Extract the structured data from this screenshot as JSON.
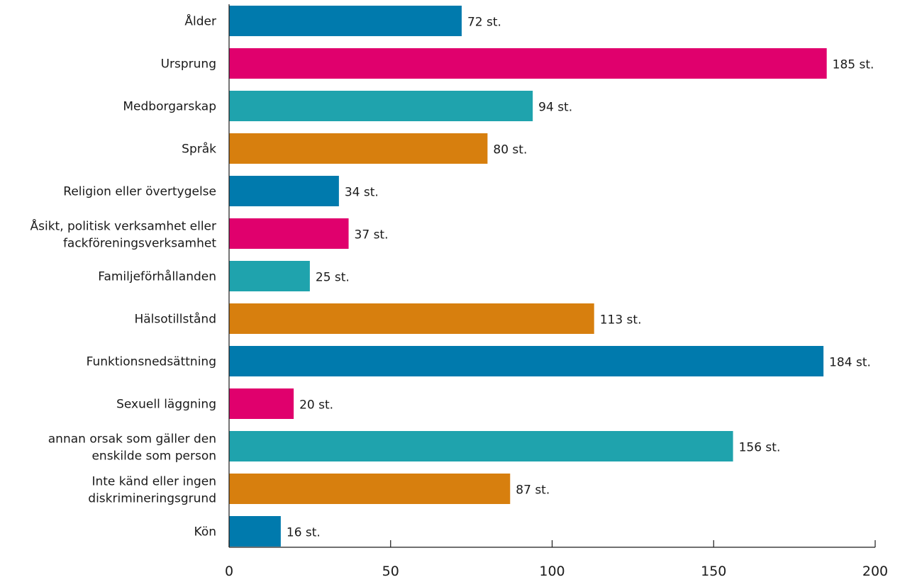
{
  "chart_data": {
    "type": "bar",
    "orientation": "horizontal",
    "title": "",
    "xlabel": "",
    "ylabel": "",
    "xlim": [
      0,
      200
    ],
    "x_ticks": [
      "0",
      "50",
      "100",
      "150",
      "200"
    ],
    "grid": false,
    "value_suffix": " st.",
    "categories": [
      [
        "Ålder"
      ],
      [
        "Ursprung"
      ],
      [
        "Medborgarskap"
      ],
      [
        "Språk"
      ],
      [
        "Religion eller övertygelse"
      ],
      [
        "Åsikt, politisk verksamhet eller",
        "fackföreningsverksamhet"
      ],
      [
        "Familjeförhållanden"
      ],
      [
        "Hälsotillstånd"
      ],
      [
        "Funktionsnedsättning"
      ],
      [
        "Sexuell läggning"
      ],
      [
        "annan orsak som gäller den",
        "enskilde som person"
      ],
      [
        "Inte känd eller ingen",
        "diskrimineringsgrund"
      ],
      [
        "Kön"
      ]
    ],
    "values": [
      72,
      185,
      94,
      80,
      34,
      37,
      25,
      113,
      184,
      20,
      156,
      87,
      16
    ],
    "value_labels": [
      "72 st.",
      "185 st.",
      "94 st.",
      "80 st.",
      "34 st.",
      "37 st.",
      "25 st.",
      "113 st.",
      "184 st.",
      "20 st.",
      "156 st.",
      "87 st.",
      "16 st."
    ],
    "colors": [
      "#007aad",
      "#e0006d",
      "#1fa3ad",
      "#d77f0e"
    ]
  }
}
